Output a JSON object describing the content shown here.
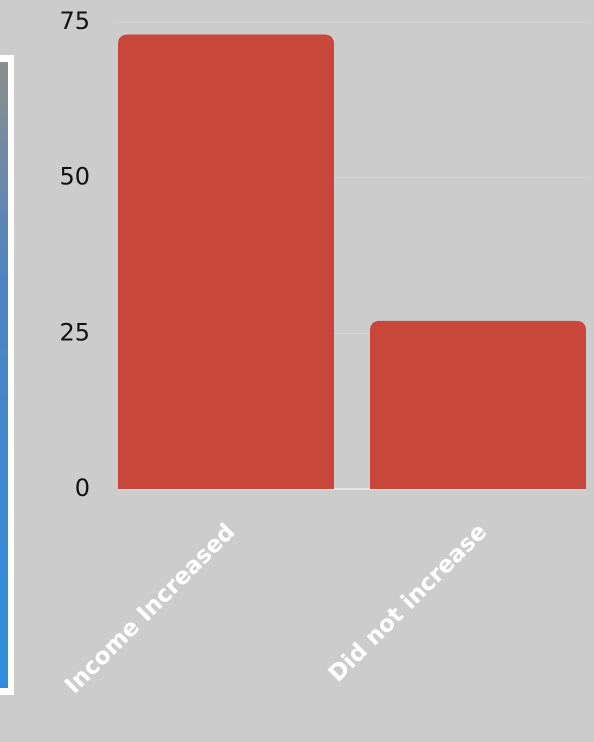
{
  "chart_data": {
    "type": "bar",
    "categories": [
      "Income Increased",
      "Did not increase"
    ],
    "values": [
      73,
      27
    ],
    "color": "#c8473a",
    "ylim": [
      0,
      75
    ],
    "yticks": [
      0,
      25,
      50,
      75
    ],
    "grid": true
  }
}
